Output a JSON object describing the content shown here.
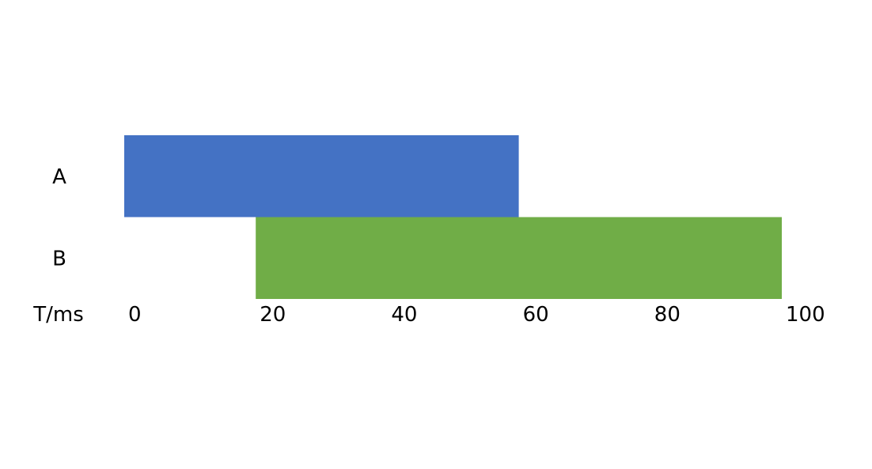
{
  "chart_data": {
    "type": "bar",
    "orientation": "horizontal",
    "subtype": "gantt",
    "categories": [
      "A",
      "B"
    ],
    "series": [
      {
        "category": "A",
        "start": 0,
        "end": 60,
        "color": "#4472C4"
      },
      {
        "category": "B",
        "start": 20,
        "end": 100,
        "color": "#70AD47"
      }
    ],
    "xlabel": "T/ms",
    "xlim": [
      0,
      100
    ],
    "xticks": [
      "0",
      "20",
      "40",
      "60",
      "80",
      "100"
    ],
    "grid": false,
    "legend": "none"
  }
}
